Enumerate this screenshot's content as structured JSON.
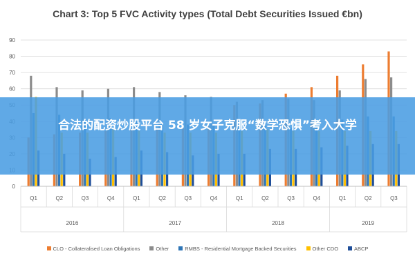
{
  "chart_data": {
    "type": "bar",
    "title": "Chart 3: Top 5 FVC Activity types (Total Debt Securities Issued €bn)",
    "ylim": [
      0,
      90
    ],
    "yticks": [
      "0",
      "10",
      "20",
      "30",
      "40",
      "50",
      "60",
      "70",
      "80",
      "90"
    ],
    "grid": true,
    "legend_position": "bottom",
    "categories": [
      "Q1",
      "Q2",
      "Q3",
      "Q4",
      "Q1",
      "Q2",
      "Q3",
      "Q4",
      "Q1",
      "Q2",
      "Q3",
      "Q4",
      "Q1",
      "Q2",
      "Q3"
    ],
    "groups": [
      {
        "label": "2016",
        "count": 4
      },
      {
        "label": "2017",
        "count": 4
      },
      {
        "label": "2018",
        "count": 4
      },
      {
        "label": "2019",
        "count": 3
      }
    ],
    "series": [
      {
        "name": "CLO - Collateralised Loan Obligations",
        "color": "#ed7d31",
        "values": [
          30,
          32,
          33,
          34,
          35,
          35,
          36,
          37,
          50,
          51,
          57,
          61,
          68,
          75,
          83
        ]
      },
      {
        "name": "Other",
        "color": "#8c8c8c",
        "values": [
          68,
          61,
          59,
          60,
          61,
          58,
          56,
          55,
          52,
          53,
          54,
          53,
          59,
          66,
          67
        ]
      },
      {
        "name": "RMBS - Residential Mortgage Backed Securities",
        "color": "#2e75b6",
        "values": [
          45,
          44,
          41,
          42,
          40,
          39,
          38,
          38,
          37,
          37,
          36,
          37,
          41,
          43,
          43
        ]
      },
      {
        "name": "Other CDO",
        "color": "#ffc000",
        "values": [
          55,
          33,
          33,
          35,
          34,
          33,
          33,
          33,
          34,
          35,
          34,
          34,
          34,
          34,
          34
        ]
      },
      {
        "name": "ABCP",
        "color": "#1f4e99",
        "values": [
          22,
          20,
          17,
          18,
          22,
          21,
          19,
          20,
          20,
          23,
          23,
          24,
          25,
          26,
          26
        ]
      }
    ]
  },
  "overlay": {
    "text": "合法的配资炒股平台 58 岁女子克服“数学恐惧”考入大学",
    "color": "#4a9de2"
  }
}
